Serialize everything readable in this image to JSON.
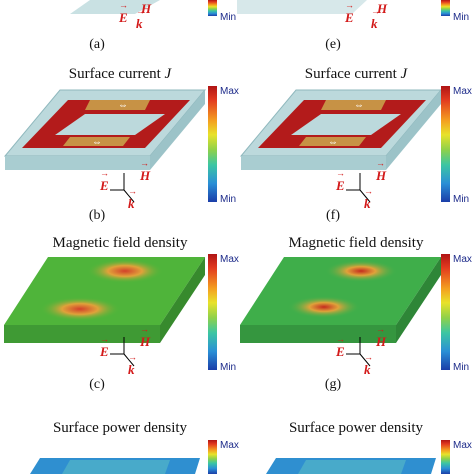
{
  "subfig_labels": [
    "(a)",
    "(e)",
    "(b)",
    "(f)",
    "(c)",
    "(g)"
  ],
  "titles": {
    "surface_current": "Surface current",
    "current_symbol": "J",
    "magnetic": "Magnetic field density",
    "power": "Surface power density"
  },
  "colorbar": {
    "max": "Max",
    "min": "Min"
  },
  "axes": {
    "E": "E",
    "H": "H",
    "k": "k"
  },
  "colors": {
    "red_ring": "#b31b1b",
    "substrate": "#bcd9dc",
    "field_green": "#4fb43a"
  }
}
